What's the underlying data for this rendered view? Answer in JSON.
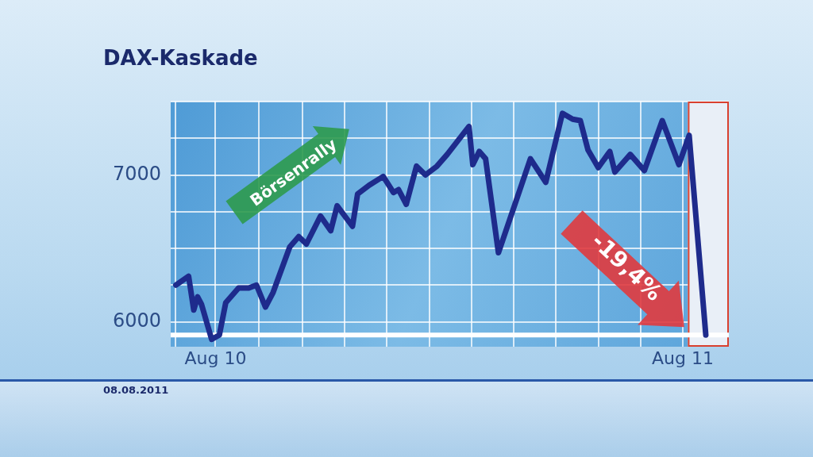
{
  "chart_data": {
    "type": "line",
    "title": "DAX-Kaskade",
    "annotations": [
      "Börsenrally",
      "-19,4%",
      "08.08.2011"
    ],
    "x": [
      "2010-07-01",
      "2010-07-11",
      "2010-07-15",
      "2010-07-18",
      "2010-07-21",
      "2010-07-29",
      "2010-08-04",
      "2010-08-09",
      "2010-08-19",
      "2010-08-27",
      "2010-09-02",
      "2010-09-09",
      "2010-09-15",
      "2010-09-28",
      "2010-10-05",
      "2010-10-11",
      "2010-10-22",
      "2010-10-30",
      "2010-11-04",
      "2010-11-16",
      "2010-11-20",
      "2010-11-29",
      "2010-12-10",
      "2010-12-18",
      "2010-12-22",
      "2010-12-28",
      "2011-01-05",
      "2011-01-12",
      "2011-01-21",
      "2011-01-29",
      "2011-02-15",
      "2011-02-18",
      "2011-02-23",
      "2011-02-28",
      "2011-03-10",
      "2011-04-04",
      "2011-04-16",
      "2011-04-29",
      "2011-05-07",
      "2011-05-13",
      "2011-05-19",
      "2011-05-27",
      "2011-06-05",
      "2011-06-09",
      "2011-06-21",
      "2011-07-02",
      "2011-07-16",
      "2011-07-29",
      "2011-08-06",
      "2011-08-19"
    ],
    "series": [
      {
        "color": "#1e2b8c",
        "values": [
          6250,
          6310,
          6080,
          6170,
          6120,
          5880,
          5910,
          6130,
          6230,
          6230,
          6250,
          6100,
          6200,
          6510,
          6580,
          6530,
          6720,
          6620,
          6790,
          6650,
          6870,
          6930,
          6990,
          6880,
          6900,
          6800,
          7060,
          7000,
          7060,
          7140,
          7330,
          7070,
          7160,
          7110,
          6470,
          7110,
          6950,
          7420,
          7380,
          7370,
          7170,
          7050,
          7160,
          7020,
          7140,
          7030,
          7370,
          7070,
          7270,
          5910
        ]
      }
    ],
    "xlim": [
      "2010-06-27",
      "2011-09-06"
    ],
    "xticks": [
      {
        "value": "2010-07-01",
        "label": null
      },
      {
        "value": "2010-08-01",
        "label": "Aug 10"
      },
      {
        "value": "2010-09-04",
        "label": null
      },
      {
        "value": "2010-10-08",
        "label": null
      },
      {
        "value": "2010-11-10",
        "label": null
      },
      {
        "value": "2010-12-13",
        "label": null
      },
      {
        "value": "2011-01-15",
        "label": null
      },
      {
        "value": "2011-02-17",
        "label": null
      },
      {
        "value": "2011-03-22",
        "label": null
      },
      {
        "value": "2011-04-24",
        "label": null
      },
      {
        "value": "2011-05-27",
        "label": null
      },
      {
        "value": "2011-06-29",
        "label": null
      },
      {
        "value": "2011-08-01",
        "label": "Aug 11"
      }
    ],
    "ylim": [
      5830,
      7500
    ],
    "yticks": [
      6000,
      {
        "value": 6250,
        "label": null
      },
      {
        "value": 6500,
        "label": null
      },
      {
        "value": 6750,
        "label": null
      },
      7000,
      {
        "value": 7250,
        "label": null
      },
      {
        "value": 7500,
        "label": null
      }
    ],
    "grid": true,
    "marker": "none",
    "ref_lines": [
      {
        "axis": "y",
        "value": 5910,
        "color": "#ffffff"
      }
    ],
    "bands": [
      {
        "axis": "x",
        "from": "2011-08-05",
        "to": "2011-09-06",
        "color": "#e9eff7"
      }
    ]
  }
}
